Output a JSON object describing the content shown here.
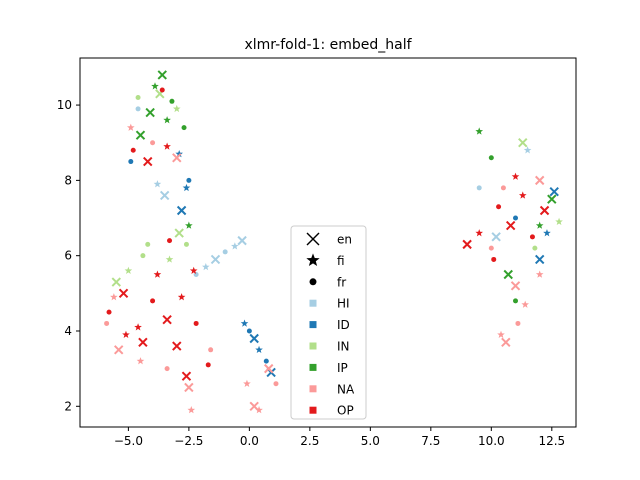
{
  "chart_data": {
    "type": "scatter",
    "title": "xlmr-fold-1: embed_half",
    "xlabel": "",
    "ylabel": "",
    "xlim": [
      -7.0,
      13.5
    ],
    "ylim": [
      1.45,
      11.25
    ],
    "xticks": [
      -5.0,
      -2.5,
      0.0,
      2.5,
      5.0,
      7.5,
      10.0,
      12.5
    ],
    "xtick_labels": [
      "−5.0",
      "−2.5",
      "0.0",
      "2.5",
      "5.0",
      "7.5",
      "10.0",
      "12.5"
    ],
    "yticks": [
      2,
      4,
      6,
      8,
      10
    ],
    "ytick_labels": [
      "2",
      "4",
      "6",
      "8",
      "10"
    ],
    "grid": false,
    "legend_position": "center",
    "marker_legend": [
      {
        "label": "en",
        "marker": "x"
      },
      {
        "label": "fi",
        "marker": "star"
      },
      {
        "label": "fr",
        "marker": "circle"
      }
    ],
    "series": [
      {
        "name": "HI",
        "color": "#a6cee3",
        "marker": "square",
        "values": [
          {
            "x": -0.3,
            "y": 6.4
          },
          {
            "x": -0.6,
            "y": 6.25
          },
          {
            "x": -1.0,
            "y": 6.1
          },
          {
            "x": -1.4,
            "y": 5.9
          },
          {
            "x": -1.8,
            "y": 5.7
          },
          {
            "x": -2.2,
            "y": 5.5
          },
          {
            "x": -3.5,
            "y": 7.6
          },
          {
            "x": -3.8,
            "y": 7.9
          },
          {
            "x": 9.5,
            "y": 7.8
          },
          {
            "x": 10.2,
            "y": 6.5
          },
          {
            "x": 11.5,
            "y": 8.8
          },
          {
            "x": -4.6,
            "y": 9.9
          }
        ]
      },
      {
        "name": "ID",
        "color": "#1f78b4",
        "marker": "square",
        "values": [
          {
            "x": -0.2,
            "y": 4.2
          },
          {
            "x": 0.0,
            "y": 4.0
          },
          {
            "x": 0.2,
            "y": 3.8
          },
          {
            "x": 0.4,
            "y": 3.5
          },
          {
            "x": 0.7,
            "y": 3.2
          },
          {
            "x": 0.9,
            "y": 2.9
          },
          {
            "x": -2.6,
            "y": 7.8
          },
          {
            "x": -2.5,
            "y": 8.0
          },
          {
            "x": -2.8,
            "y": 7.2
          },
          {
            "x": -2.9,
            "y": 8.7
          },
          {
            "x": -4.9,
            "y": 8.5
          },
          {
            "x": 12.6,
            "y": 7.7
          },
          {
            "x": 12.3,
            "y": 6.6
          },
          {
            "x": 11.0,
            "y": 7.0
          },
          {
            "x": 12.0,
            "y": 5.9
          }
        ]
      },
      {
        "name": "IN",
        "color": "#b2df8a",
        "marker": "square",
        "values": [
          {
            "x": -4.6,
            "y": 10.2
          },
          {
            "x": -3.7,
            "y": 10.3
          },
          {
            "x": -3.0,
            "y": 9.9
          },
          {
            "x": -4.2,
            "y": 6.3
          },
          {
            "x": -5.5,
            "y": 5.3
          },
          {
            "x": -5.0,
            "y": 5.6
          },
          {
            "x": -4.4,
            "y": 6.0
          },
          {
            "x": -2.9,
            "y": 6.6
          },
          {
            "x": -3.3,
            "y": 5.9
          },
          {
            "x": -2.6,
            "y": 6.3
          },
          {
            "x": 11.3,
            "y": 9.0
          },
          {
            "x": 12.8,
            "y": 6.9
          },
          {
            "x": 11.8,
            "y": 6.2
          }
        ]
      },
      {
        "name": "IP",
        "color": "#33a02c",
        "marker": "square",
        "values": [
          {
            "x": -3.6,
            "y": 10.8
          },
          {
            "x": -3.9,
            "y": 10.5
          },
          {
            "x": -3.2,
            "y": 10.1
          },
          {
            "x": -4.1,
            "y": 9.8
          },
          {
            "x": -3.4,
            "y": 9.6
          },
          {
            "x": -2.7,
            "y": 9.4
          },
          {
            "x": -4.5,
            "y": 9.2
          },
          {
            "x": 9.5,
            "y": 9.3
          },
          {
            "x": 10.0,
            "y": 8.6
          },
          {
            "x": 12.5,
            "y": 7.5
          },
          {
            "x": 12.0,
            "y": 6.8
          },
          {
            "x": 11.0,
            "y": 4.8
          },
          {
            "x": 10.7,
            "y": 5.5
          },
          {
            "x": -2.5,
            "y": 6.8
          }
        ]
      },
      {
        "name": "NA",
        "color": "#fb9a99",
        "marker": "square",
        "values": [
          {
            "x": -4.9,
            "y": 9.4
          },
          {
            "x": -4.0,
            "y": 9.0
          },
          {
            "x": -3.0,
            "y": 8.6
          },
          {
            "x": -5.6,
            "y": 4.9
          },
          {
            "x": -5.9,
            "y": 4.2
          },
          {
            "x": -5.4,
            "y": 3.5
          },
          {
            "x": -4.5,
            "y": 3.2
          },
          {
            "x": -3.4,
            "y": 3.0
          },
          {
            "x": -2.5,
            "y": 2.5
          },
          {
            "x": -2.4,
            "y": 1.9
          },
          {
            "x": -1.6,
            "y": 3.5
          },
          {
            "x": 0.2,
            "y": 2.0
          },
          {
            "x": 0.4,
            "y": 1.9
          },
          {
            "x": 1.1,
            "y": 2.6
          },
          {
            "x": 0.8,
            "y": 3.0
          },
          {
            "x": -0.1,
            "y": 2.6
          },
          {
            "x": 10.0,
            "y": 6.2
          },
          {
            "x": 11.0,
            "y": 5.2
          },
          {
            "x": 12.0,
            "y": 5.5
          },
          {
            "x": 10.5,
            "y": 7.8
          },
          {
            "x": 12.0,
            "y": 8.0
          },
          {
            "x": 11.4,
            "y": 4.7
          },
          {
            "x": 11.1,
            "y": 4.2
          },
          {
            "x": 10.6,
            "y": 3.7
          },
          {
            "x": 10.4,
            "y": 3.9
          }
        ]
      },
      {
        "name": "OP",
        "color": "#e31a1c",
        "marker": "square",
        "values": [
          {
            "x": -5.8,
            "y": 4.5
          },
          {
            "x": -5.2,
            "y": 5.0
          },
          {
            "x": -4.6,
            "y": 4.1
          },
          {
            "x": -4.0,
            "y": 4.8
          },
          {
            "x": -3.4,
            "y": 4.3
          },
          {
            "x": -2.8,
            "y": 4.9
          },
          {
            "x": -2.2,
            "y": 4.2
          },
          {
            "x": -3.0,
            "y": 3.6
          },
          {
            "x": -3.8,
            "y": 5.5
          },
          {
            "x": -3.3,
            "y": 6.4
          },
          {
            "x": -4.4,
            "y": 3.7
          },
          {
            "x": -5.1,
            "y": 3.9
          },
          {
            "x": -1.7,
            "y": 3.1
          },
          {
            "x": -2.6,
            "y": 2.8
          },
          {
            "x": -2.3,
            "y": 5.6
          },
          {
            "x": -4.8,
            "y": 8.8
          },
          {
            "x": -4.2,
            "y": 8.5
          },
          {
            "x": -3.4,
            "y": 8.9
          },
          {
            "x": -3.6,
            "y": 10.4
          },
          {
            "x": 9.0,
            "y": 6.3
          },
          {
            "x": 9.5,
            "y": 6.6
          },
          {
            "x": 10.3,
            "y": 7.3
          },
          {
            "x": 10.8,
            "y": 6.8
          },
          {
            "x": 11.3,
            "y": 7.6
          },
          {
            "x": 11.7,
            "y": 6.5
          },
          {
            "x": 12.2,
            "y": 7.2
          },
          {
            "x": 11.0,
            "y": 8.1
          },
          {
            "x": 10.1,
            "y": 5.9
          }
        ]
      }
    ]
  }
}
